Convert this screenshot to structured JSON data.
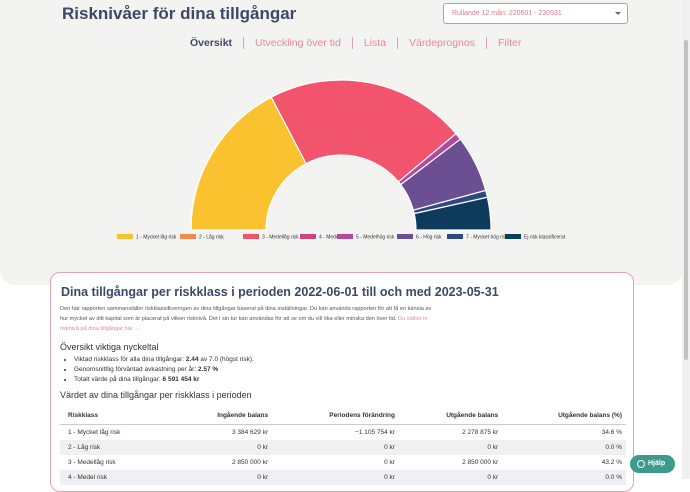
{
  "header": {
    "title": "Risknivåer för dina tillgångar",
    "period_select": "Rullande 12 mån: 220601 - 230531"
  },
  "tabs": [
    "Översikt",
    "Utveckling över tid",
    "Lista",
    "Värdeprognos",
    "Filter"
  ],
  "chart_data": {
    "type": "pie",
    "half": true,
    "categories": [
      "1 - Mycket låg risk",
      "2 - Låg risk",
      "3 - Medellåg risk",
      "4 - Medel risk",
      "5 - Medelhög risk",
      "6 - Hög risk",
      "7 - Mycket hög risk",
      "Ej risk klassificerat"
    ],
    "values": [
      34.6,
      0,
      43.2,
      0,
      1.5,
      12.2,
      1.5,
      7.0
    ],
    "colors": [
      "#f9c22e",
      "#f08a4b",
      "#f2536d",
      "#d4417c",
      "#b24a9b",
      "#6b4f92",
      "#2e4a7d",
      "#0e3a5c"
    ]
  },
  "card": {
    "title": "Dina tillgångar per riskklass i perioden 2022-06-01 till och med 2023-05-31",
    "intro": "Den här rapporten sammanställer riskklassificeringen av dina tillgångar baserat på dina inställningar. Du kan använda rapporten för att få en känsla av hur mycket av ditt kapital som är placerat på vilken risknivå. Det i sin tur kan användas för att se om du vill öka eller minska den över tid.",
    "intro_link": "Du ställer in risknivå på dina tillgångar här →",
    "key_title": "Översikt viktiga nyckeltal",
    "key_figures": [
      {
        "label": "Viktad riskklass för alla dina tillgångar:",
        "value": "2.44",
        "suffix": "av 7.0 (högst risk)."
      },
      {
        "label": "Genomsnittlig förväntad avkastning per år:",
        "value": "2.57 %",
        "suffix": ""
      },
      {
        "label": "Totalt värde på dina tillgångar:",
        "value": "6 591 454 kr",
        "suffix": ""
      }
    ],
    "table_title": "Värdet av dina tillgångar per riskklass i perioden"
  },
  "table": {
    "headers": [
      "Riskklass",
      "Ingående balans",
      "Periodens förändring",
      "Utgående balans",
      "Utgående balans (%)"
    ],
    "rows": [
      [
        "1 - Mycket låg risk",
        "3 384 629 kr",
        "−1 105 754 kr",
        "2 278 875 kr",
        "34.6 %"
      ],
      [
        "2 - Låg risk",
        "0 kr",
        "0 kr",
        "0 kr",
        "0.0 %"
      ],
      [
        "3 - Medellåg risk",
        "2 850 000 kr",
        "0 kr",
        "2 850 000 kr",
        "43.2 %"
      ],
      [
        "4 - Medel risk",
        "0 kr",
        "0 kr",
        "0 kr",
        "0.0 %"
      ]
    ]
  },
  "help": "Hjälp"
}
